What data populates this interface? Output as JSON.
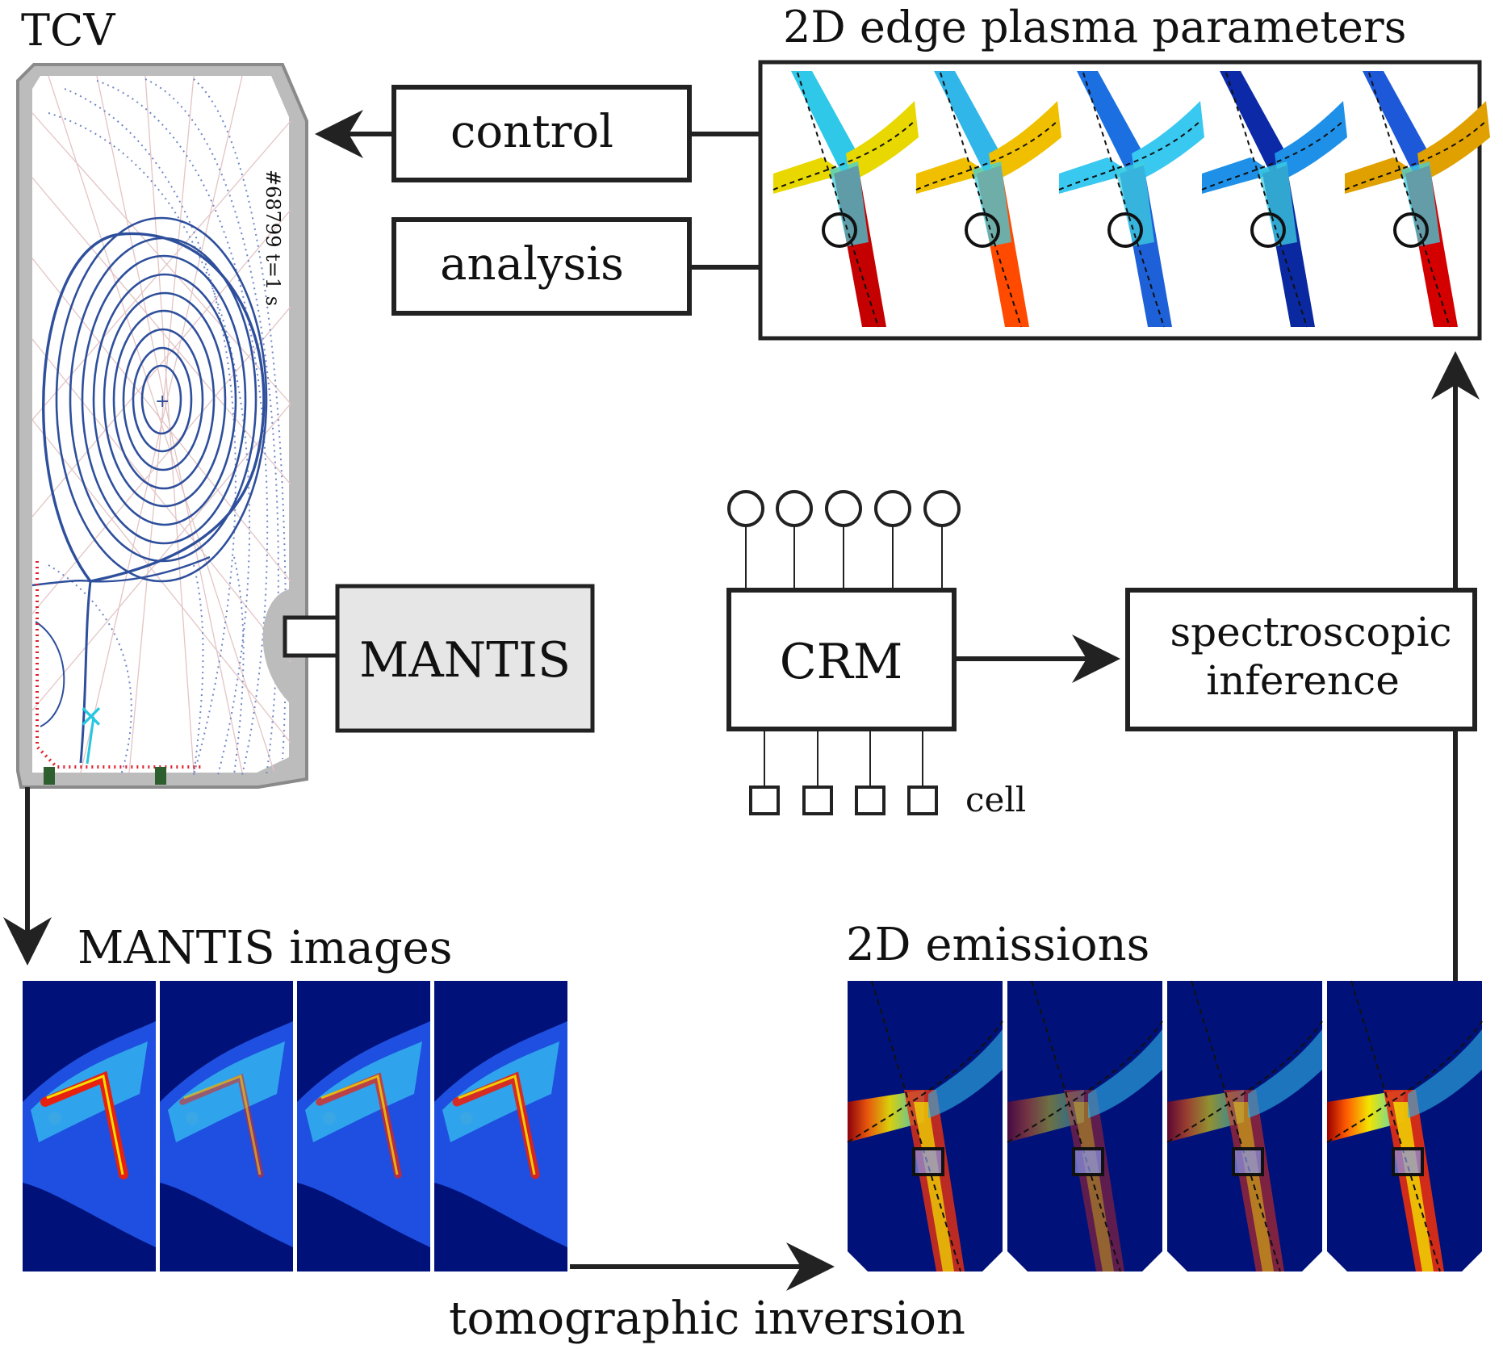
{
  "labels": {
    "tcv": "TCV",
    "shot": "#68799 t=1 s",
    "edge_params": "2D edge plasma parameters",
    "control": "control",
    "analysis": "analysis",
    "mantis": "MANTIS",
    "crm": "CRM",
    "spectroscopic_line1": "spectroscopic",
    "spectroscopic_line2": "inference",
    "cell": "cell",
    "mantis_images": "MANTIS images",
    "emissions": "2D emissions",
    "tomographic": "tomographic inversion"
  },
  "colors": {
    "line": "#222222",
    "vessel": "#b9b9b9",
    "vessel_outline": "#8a8a8a",
    "flux": "#2e4f9c",
    "camera_fill": "#e6e6e6",
    "panel_blue": "#00127a",
    "hot": "#e01a12",
    "dot_red": "#e0202a",
    "xpoint": "#26c7e0",
    "tile": "#2d5e2d"
  },
  "counts": {
    "param_panels": 5,
    "mantis_panels": 4,
    "emission_panels": 4,
    "crm_inputs": 5,
    "crm_cells": 4
  }
}
